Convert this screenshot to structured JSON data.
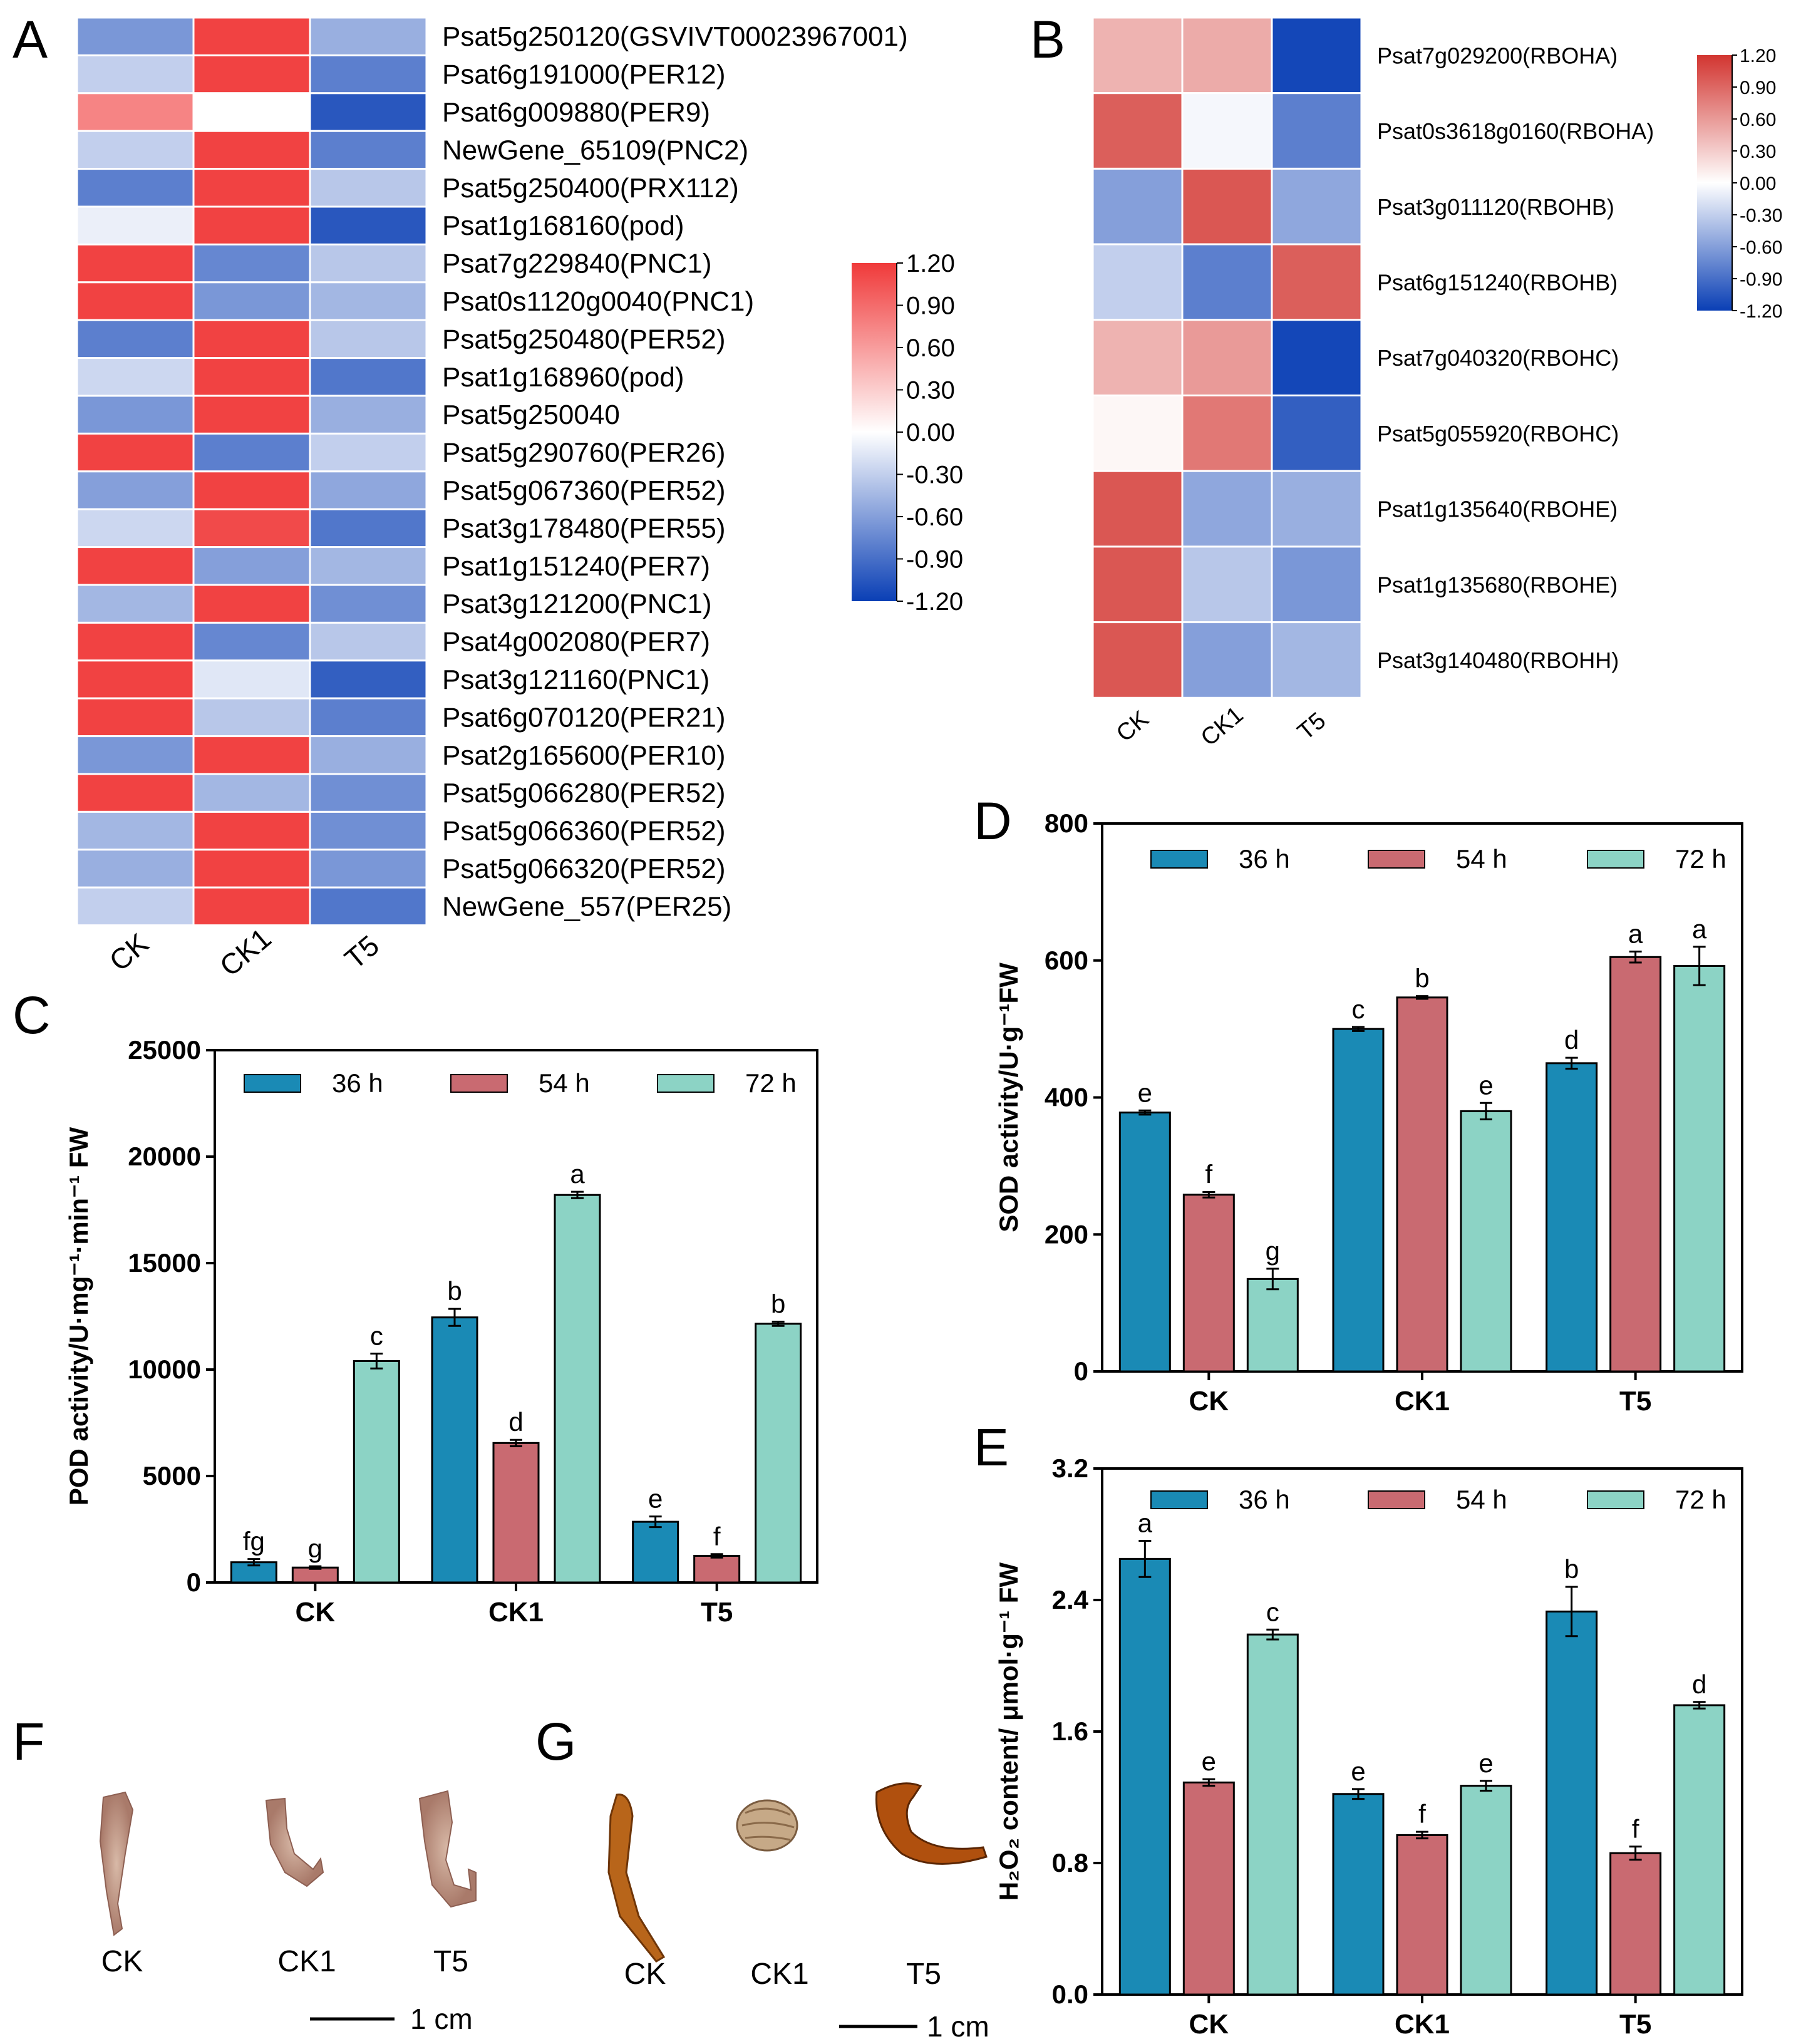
{
  "panels": {
    "A": "A",
    "B": "B",
    "C": "C",
    "D": "D",
    "E": "E",
    "F": "F",
    "G": "G"
  },
  "photo_labels": {
    "F": [
      "CK",
      "CK1",
      "T5"
    ],
    "G": [
      "CK",
      "CK1",
      "T5"
    ],
    "scale_F": "1 cm",
    "scale_G": "1 cm"
  },
  "colors": {
    "s36": "#1a8ab5",
    "s54": "#c96a71",
    "s72": "#8cd3c5",
    "heat_neg": "#0a3fb5",
    "heat_mid": "#ffffff",
    "heat_pos": "#f03a3a",
    "heat_pos_b": "#d23530"
  },
  "chart_data": [
    {
      "id": "A",
      "type": "heatmap",
      "columns": [
        "CK",
        "CK1",
        "T5"
      ],
      "rows": [
        "Psat5g250120(GSVIVT00023967001)",
        "Psat6g191000(PER12)",
        "Psat6g009880(PER9)",
        "NewGene_65109(PNC2)",
        "Psat5g250400(PRX112)",
        "Psat1g168160(pod)",
        "Psat7g229840(PNC1)",
        "Psat0s1120g0040(PNC1)",
        "Psat5g250480(PER52)",
        "Psat1g168960(pod)",
        "Psat5g250040",
        "Psat5g290760(PER26)",
        "Psat5g067360(PER52)",
        "Psat3g178480(PER55)",
        "Psat1g151240(PER7)",
        "Psat3g121200(PNC1)",
        "Psat4g002080(PER7)",
        "Psat3g121160(PNC1)",
        "Psat6g070120(PER21)",
        "Psat2g165600(PER10)",
        "Psat5g066280(PER52)",
        "Psat5g066360(PER52)",
        "Psat5g066320(PER52)",
        "NewGene_557(PER25)"
      ],
      "values": [
        [
          -0.65,
          1.15,
          -0.5
        ],
        [
          -0.3,
          1.15,
          -0.8
        ],
        [
          0.75,
          0.0,
          -1.05
        ],
        [
          -0.3,
          1.15,
          -0.8
        ],
        [
          -0.8,
          1.15,
          -0.35
        ],
        [
          -0.1,
          1.15,
          -1.05
        ],
        [
          1.15,
          -0.75,
          -0.35
        ],
        [
          1.15,
          -0.65,
          -0.45
        ],
        [
          -0.8,
          1.15,
          -0.35
        ],
        [
          -0.25,
          1.15,
          -0.85
        ],
        [
          -0.65,
          1.15,
          -0.5
        ],
        [
          1.15,
          -0.8,
          -0.3
        ],
        [
          -0.6,
          1.15,
          -0.55
        ],
        [
          -0.25,
          1.1,
          -0.85
        ],
        [
          1.15,
          -0.6,
          -0.45
        ],
        [
          -0.45,
          1.15,
          -0.7
        ],
        [
          1.15,
          -0.75,
          -0.35
        ],
        [
          1.15,
          -0.15,
          -1.0
        ],
        [
          1.15,
          -0.35,
          -0.8
        ],
        [
          -0.65,
          1.15,
          -0.5
        ],
        [
          1.15,
          -0.45,
          -0.7
        ],
        [
          -0.45,
          1.15,
          -0.7
        ],
        [
          -0.5,
          1.15,
          -0.65
        ],
        [
          -0.3,
          1.15,
          -0.85
        ]
      ],
      "scale": {
        "min": -1.2,
        "max": 1.2,
        "ticks": [
          "1.20",
          "0.90",
          "0.60",
          "0.30",
          "0.00",
          "-0.30",
          "-0.60",
          "-0.90",
          "-1.20"
        ]
      }
    },
    {
      "id": "B",
      "type": "heatmap",
      "columns": [
        "CK",
        "CK1",
        "T5"
      ],
      "rows": [
        "Psat7g029200(RBOHA)",
        "Psat0s3618g0160(RBOHA)",
        "Psat3g011120(RBOHB)",
        "Psat6g151240(RBOHB)",
        "Psat7g040320(RBOHC)",
        "Psat5g055920(RBOHC)",
        "Psat1g135640(RBOHE)",
        "Psat1g135680(RBOHE)",
        "Psat3g140480(RBOHH)"
      ],
      "values": [
        [
          0.45,
          0.5,
          -1.15
        ],
        [
          0.95,
          -0.05,
          -0.8
        ],
        [
          -0.6,
          1.0,
          -0.55
        ],
        [
          -0.3,
          -0.8,
          0.95
        ],
        [
          0.45,
          0.6,
          -1.15
        ],
        [
          0.05,
          0.8,
          -1.0
        ],
        [
          1.0,
          -0.55,
          -0.5
        ],
        [
          1.0,
          -0.35,
          -0.65
        ],
        [
          1.0,
          -0.6,
          -0.45
        ]
      ],
      "scale": {
        "min": -1.2,
        "max": 1.2,
        "ticks": [
          "1.20",
          "0.90",
          "0.60",
          "0.30",
          "0.00",
          "-0.30",
          "-0.60",
          "-0.90",
          "-1.20"
        ]
      }
    },
    {
      "id": "C",
      "type": "bar",
      "categories": [
        "CK",
        "CK1",
        "T5"
      ],
      "series": [
        {
          "name": "36 h",
          "values": [
            950,
            12450,
            2850
          ],
          "errors": [
            150,
            400,
            250
          ],
          "letters": [
            "fg",
            "b",
            "e"
          ]
        },
        {
          "name": "54 h",
          "values": [
            700,
            6550,
            1250
          ],
          "errors": [
            60,
            150,
            80
          ],
          "letters": [
            "g",
            "d",
            "f"
          ]
        },
        {
          "name": "72 h",
          "values": [
            10400,
            18200,
            12150
          ],
          "errors": [
            350,
            150,
            100
          ],
          "letters": [
            "c",
            "a",
            "b"
          ]
        }
      ],
      "ylabel": "POD activity/U·mg⁻¹·min⁻¹ FW",
      "ylim": [
        0,
        25000
      ],
      "yticks": [
        0,
        5000,
        10000,
        15000,
        20000,
        25000
      ]
    },
    {
      "id": "D",
      "type": "bar",
      "categories": [
        "CK",
        "CK1",
        "T5"
      ],
      "series": [
        {
          "name": "36 h",
          "values": [
            378,
            500,
            450
          ],
          "errors": [
            3,
            3,
            8
          ],
          "letters": [
            "e",
            "c",
            "d"
          ]
        },
        {
          "name": "54 h",
          "values": [
            258,
            546,
            605
          ],
          "errors": [
            4,
            2,
            8
          ],
          "letters": [
            "f",
            "b",
            "a"
          ]
        },
        {
          "name": "72 h",
          "values": [
            135,
            380,
            592
          ],
          "errors": [
            15,
            12,
            28
          ],
          "letters": [
            "g",
            "e",
            "a"
          ]
        }
      ],
      "ylabel": "SOD activity/U·g⁻¹FW",
      "ylim": [
        0,
        800
      ],
      "yticks": [
        0,
        200,
        400,
        600,
        800
      ]
    },
    {
      "id": "E",
      "type": "bar",
      "categories": [
        "CK",
        "CK1",
        "T5"
      ],
      "series": [
        {
          "name": "36 h",
          "values": [
            2.65,
            1.22,
            2.33
          ],
          "errors": [
            0.11,
            0.03,
            0.15
          ],
          "letters": [
            "a",
            "e",
            "b"
          ]
        },
        {
          "name": "54 h",
          "values": [
            1.29,
            0.97,
            0.86
          ],
          "errors": [
            0.02,
            0.02,
            0.04
          ],
          "letters": [
            "e",
            "f",
            "f"
          ]
        },
        {
          "name": "72 h",
          "values": [
            2.19,
            1.27,
            1.76
          ],
          "errors": [
            0.03,
            0.03,
            0.02
          ],
          "letters": [
            "c",
            "e",
            "d"
          ]
        }
      ],
      "ylabel": "H₂O₂ content/ μmol·g⁻¹ FW",
      "ylim": [
        0,
        3.2
      ],
      "yticks": [
        "0.0",
        "0.8",
        "1.6",
        "2.4",
        "3.2"
      ]
    }
  ]
}
